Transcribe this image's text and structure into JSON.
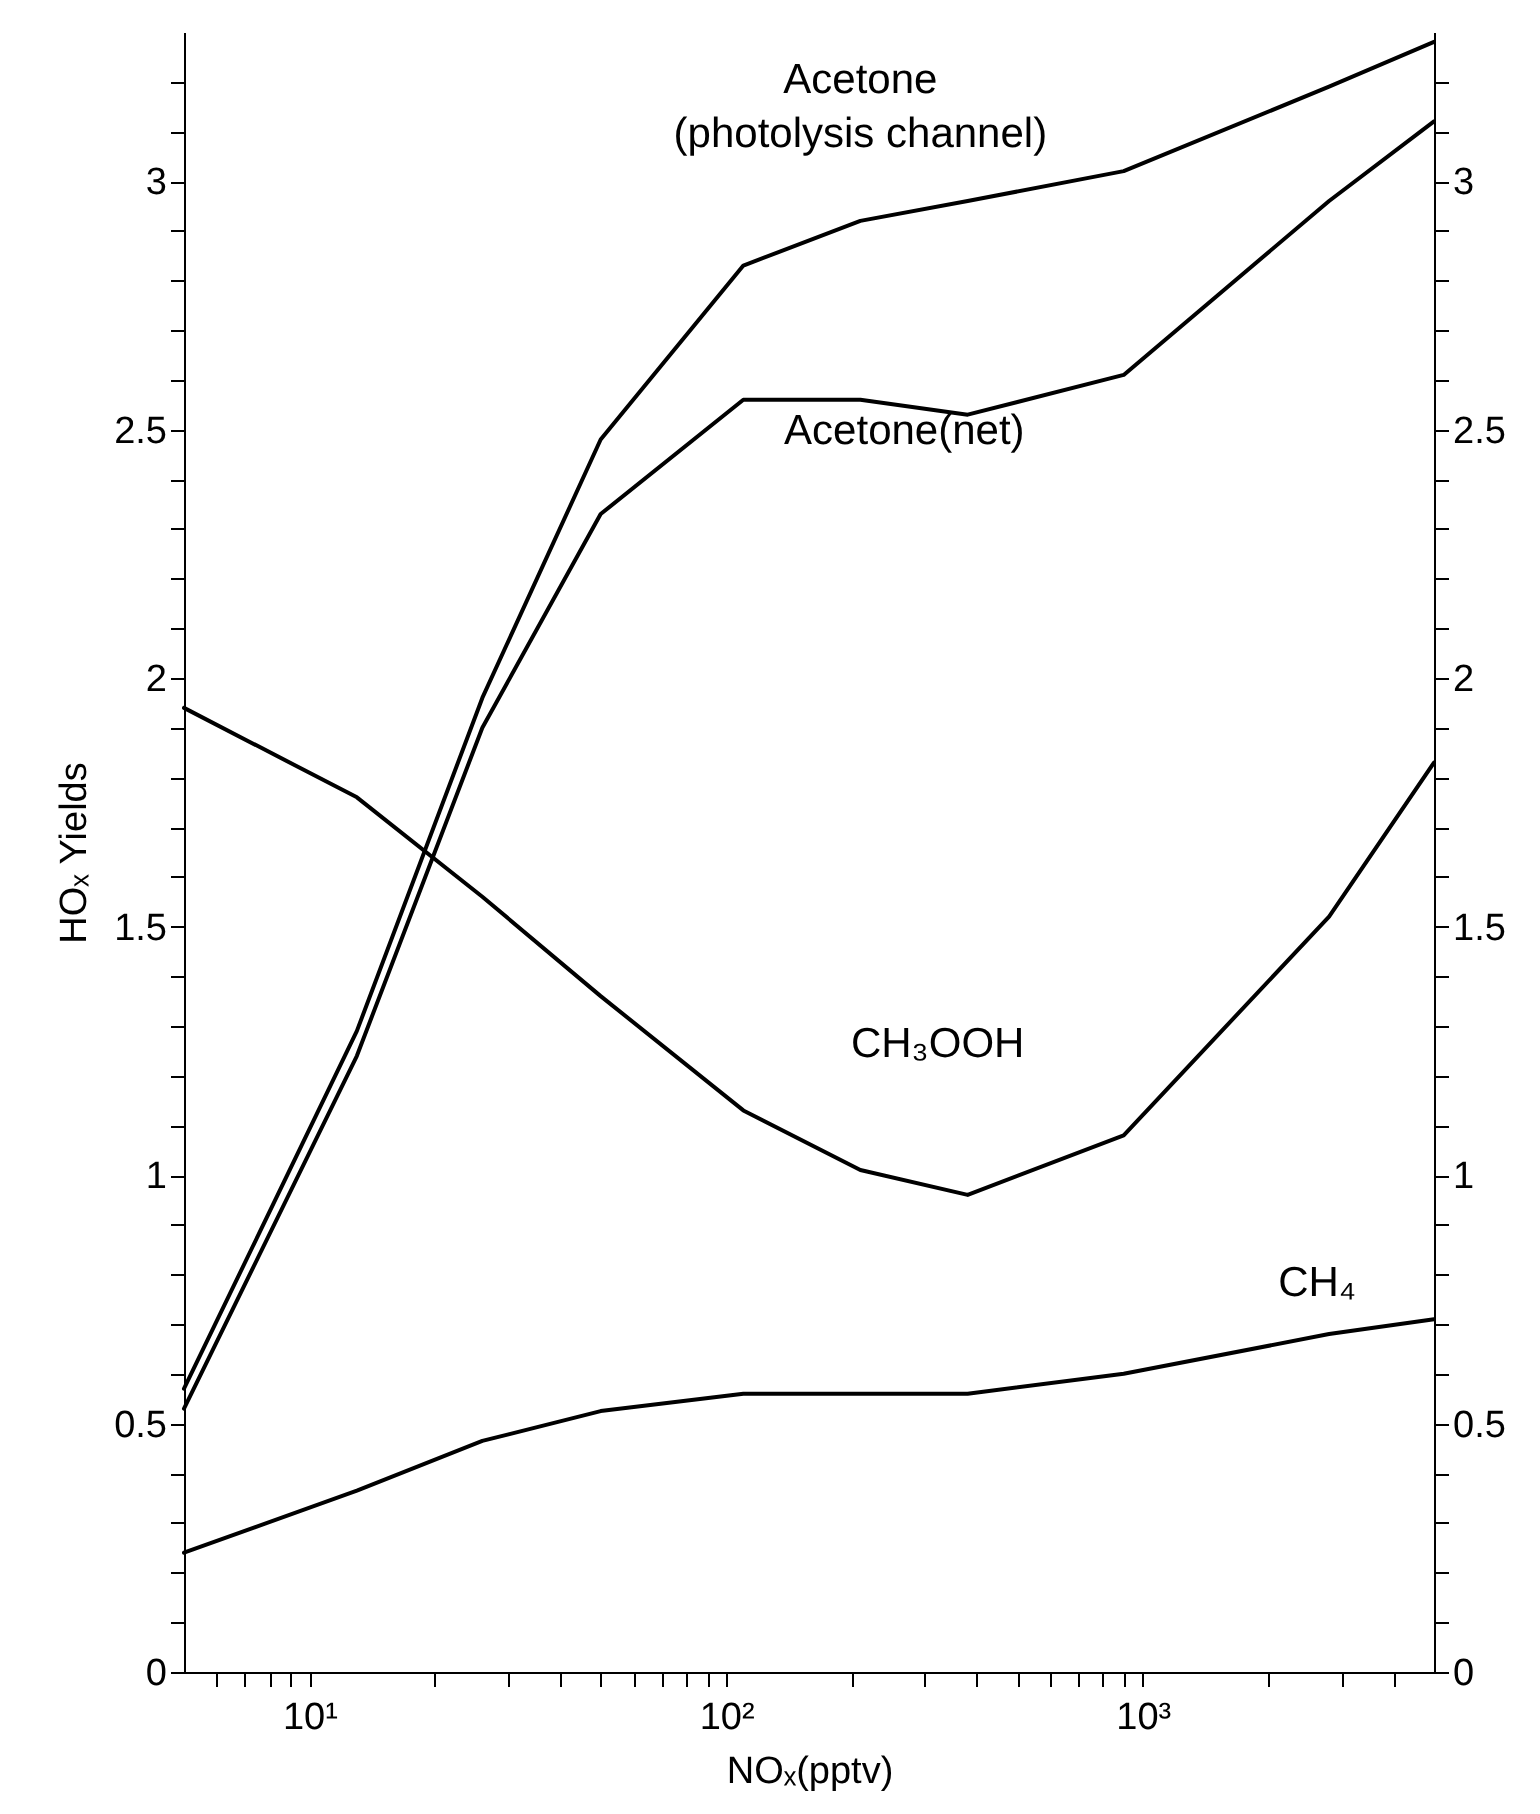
{
  "chart_data": {
    "type": "line",
    "xlabel": "NOₓ(pptv)",
    "ylabel": "HOₓ Yields",
    "log": "x",
    "grid": false,
    "marker": "none",
    "line_style": "solid",
    "x": [
      5,
      13,
      26,
      50,
      110,
      210,
      380,
      900,
      2800,
      5000
    ],
    "xlim": [
      5,
      5000
    ],
    "xticks": [
      {
        "value": 6,
        "label": null
      },
      {
        "value": 7,
        "label": null
      },
      {
        "value": 8,
        "label": null
      },
      {
        "value": 9,
        "label": null
      },
      {
        "value": 10,
        "label": "10¹"
      },
      {
        "value": 20,
        "label": null
      },
      {
        "value": 30,
        "label": null
      },
      {
        "value": 40,
        "label": null
      },
      {
        "value": 50,
        "label": null
      },
      {
        "value": 60,
        "label": null
      },
      {
        "value": 70,
        "label": null
      },
      {
        "value": 80,
        "label": null
      },
      {
        "value": 90,
        "label": null
      },
      {
        "value": 100,
        "label": "10²"
      },
      {
        "value": 200,
        "label": null
      },
      {
        "value": 300,
        "label": null
      },
      {
        "value": 400,
        "label": null
      },
      {
        "value": 500,
        "label": null
      },
      {
        "value": 600,
        "label": null
      },
      {
        "value": 700,
        "label": null
      },
      {
        "value": 800,
        "label": null
      },
      {
        "value": 900,
        "label": null
      },
      {
        "value": 1000,
        "label": "10³"
      },
      {
        "value": 2000,
        "label": null
      },
      {
        "value": 3000,
        "label": null
      },
      {
        "value": 4000,
        "label": null
      }
    ],
    "ylim": [
      0,
      3.3
    ],
    "yticks": [
      0,
      {
        "value": 0.1,
        "label": null
      },
      {
        "value": 0.2,
        "label": null
      },
      {
        "value": 0.3,
        "label": null
      },
      {
        "value": 0.4,
        "label": null
      },
      0.5,
      {
        "value": 0.6,
        "label": null
      },
      {
        "value": 0.7,
        "label": null
      },
      {
        "value": 0.8,
        "label": null
      },
      {
        "value": 0.9,
        "label": null
      },
      1,
      {
        "value": 1.1,
        "label": null
      },
      {
        "value": 1.2,
        "label": null
      },
      {
        "value": 1.3,
        "label": null
      },
      {
        "value": 1.4,
        "label": null
      },
      1.5,
      {
        "value": 1.6,
        "label": null
      },
      {
        "value": 1.7,
        "label": null
      },
      {
        "value": 1.8,
        "label": null
      },
      {
        "value": 1.9,
        "label": null
      },
      2,
      {
        "value": 2.1,
        "label": null
      },
      {
        "value": 2.2,
        "label": null
      },
      {
        "value": 2.3,
        "label": null
      },
      {
        "value": 2.4,
        "label": null
      },
      2.5,
      {
        "value": 2.6,
        "label": null
      },
      {
        "value": 2.7,
        "label": null
      },
      {
        "value": 2.8,
        "label": null
      },
      {
        "value": 2.9,
        "label": null
      },
      3,
      {
        "value": 3.1,
        "label": null
      },
      {
        "value": 3.2,
        "label": null
      }
    ],
    "y2lim": [
      0,
      3.3
    ],
    "y2ticks": [
      0,
      {
        "value": 0.1,
        "label": null
      },
      {
        "value": 0.2,
        "label": null
      },
      {
        "value": 0.3,
        "label": null
      },
      {
        "value": 0.4,
        "label": null
      },
      0.5,
      {
        "value": 0.6,
        "label": null
      },
      {
        "value": 0.7,
        "label": null
      },
      {
        "value": 0.8,
        "label": null
      },
      {
        "value": 0.9,
        "label": null
      },
      1,
      {
        "value": 1.1,
        "label": null
      },
      {
        "value": 1.2,
        "label": null
      },
      {
        "value": 1.3,
        "label": null
      },
      {
        "value": 1.4,
        "label": null
      },
      1.5,
      {
        "value": 1.6,
        "label": null
      },
      {
        "value": 1.7,
        "label": null
      },
      {
        "value": 1.8,
        "label": null
      },
      {
        "value": 1.9,
        "label": null
      },
      2,
      {
        "value": 2.1,
        "label": null
      },
      {
        "value": 2.2,
        "label": null
      },
      {
        "value": 2.3,
        "label": null
      },
      {
        "value": 2.4,
        "label": null
      },
      2.5,
      {
        "value": 2.6,
        "label": null
      },
      {
        "value": 2.7,
        "label": null
      },
      {
        "value": 2.8,
        "label": null
      },
      {
        "value": 2.9,
        "label": null
      },
      3,
      {
        "value": 3.1,
        "label": null
      },
      {
        "value": 3.2,
        "label": null
      }
    ],
    "series": [
      {
        "name": "Acetone\n(photolysis channel)",
        "color": "#000000",
        "values": [
          0.57,
          1.29,
          1.96,
          2.48,
          2.83,
          2.92,
          2.96,
          3.02,
          3.19,
          3.28
        ]
      },
      {
        "name": "Acetone(net)",
        "color": "#000000",
        "values": [
          0.53,
          1.24,
          1.9,
          2.33,
          2.56,
          2.56,
          2.53,
          2.61,
          2.96,
          3.12
        ]
      },
      {
        "name": "CH₃OOH",
        "color": "#000000",
        "values": [
          1.94,
          1.76,
          1.56,
          1.36,
          1.13,
          1.01,
          0.96,
          1.08,
          1.52,
          1.83
        ]
      },
      {
        "name": "CH₄",
        "color": "#000000",
        "values": [
          0.24,
          0.365,
          0.465,
          0.525,
          0.56,
          0.56,
          0.56,
          0.6,
          0.68,
          0.71
        ]
      }
    ]
  }
}
